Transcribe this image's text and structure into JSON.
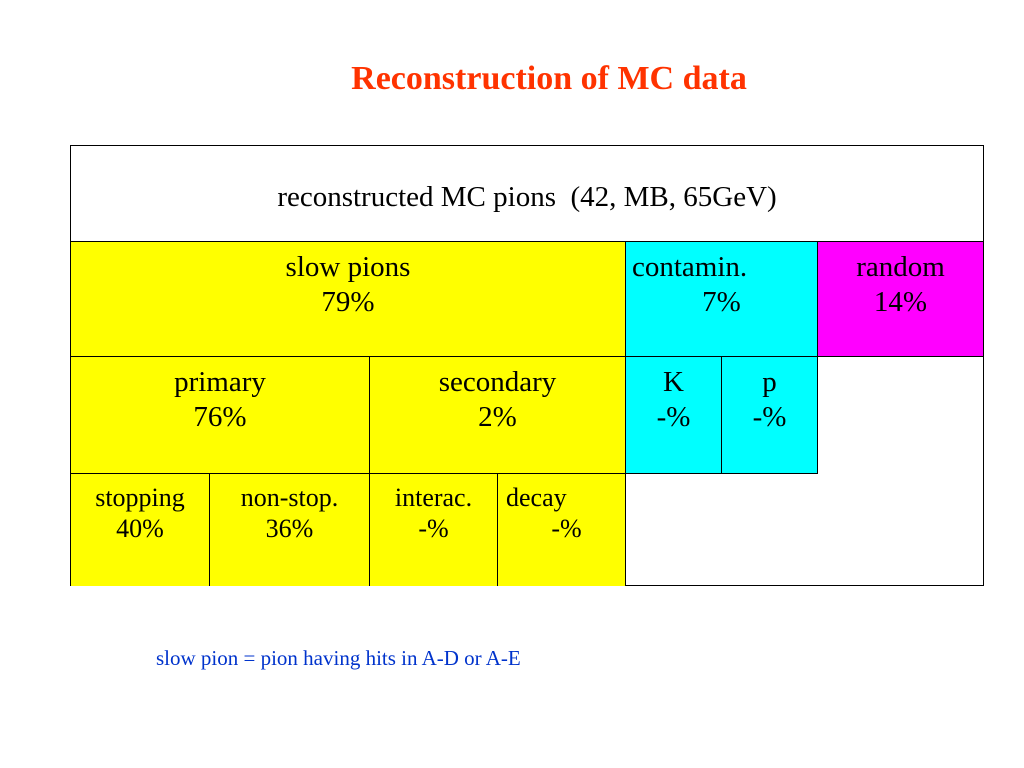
{
  "title": "Reconstruction of MC data",
  "table": {
    "header": "reconstructed MC pions  (42, MB, 65GeV)",
    "level1": {
      "slow_pions": {
        "label": "slow pions",
        "value": "79%"
      },
      "contamin": {
        "label": "contamin.",
        "value": "7%"
      },
      "random": {
        "label": "random",
        "value": "14%"
      }
    },
    "level2": {
      "primary": {
        "label": "primary",
        "value": "76%"
      },
      "secondary": {
        "label": "secondary",
        "value": "2%"
      },
      "K": {
        "label": "K",
        "value": "-%"
      },
      "p": {
        "label": "p",
        "value": "-%"
      }
    },
    "level3": {
      "stopping": {
        "label": "stopping",
        "value": "40%"
      },
      "non_stop": {
        "label": "non-stop.",
        "value": "36%"
      },
      "interac": {
        "label": "interac.",
        "value": "-%"
      },
      "decay": {
        "label": "decay",
        "value": "-%"
      }
    }
  },
  "footnote": "slow pion = pion having hits in A-D or A-E",
  "colors": {
    "title": "#ff3300",
    "slow_pions": "#ffff00",
    "contamin": "#00ffff",
    "random": "#ff00ff",
    "footnote": "#0033cc"
  }
}
